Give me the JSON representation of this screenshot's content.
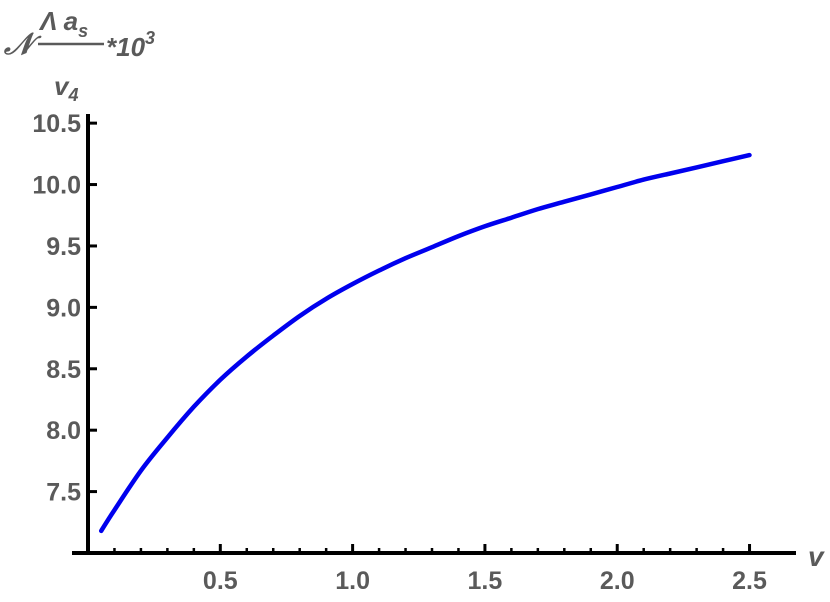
{
  "chart_data": {
    "type": "line",
    "title": "",
    "xlabel": "v",
    "ylabel": {
      "prefix": "𝒩",
      "numerator": "Λ a",
      "numerator_sub": "s",
      "denominator": "v",
      "denominator_sub": "4",
      "suffix": "*10",
      "suffix_sup": "3"
    },
    "xlim": [
      0,
      2.6
    ],
    "ylim": [
      7.0,
      10.55
    ],
    "xticks": [
      0.5,
      1.0,
      1.5,
      2.0,
      2.5
    ],
    "xtick_labels": [
      "0.5",
      "1.0",
      "1.5",
      "2.0",
      "2.5"
    ],
    "yticks": [
      7.5,
      8.0,
      8.5,
      9.0,
      9.5,
      10.0,
      10.5
    ],
    "ytick_labels": [
      "7.5",
      "8.0",
      "8.5",
      "9.0",
      "9.5",
      "10.0",
      "10.5"
    ],
    "grid": false,
    "series": [
      {
        "color": "#0000ee",
        "x": [
          0.05,
          0.1,
          0.2,
          0.3,
          0.4,
          0.5,
          0.6,
          0.7,
          0.8,
          0.9,
          1.0,
          1.1,
          1.2,
          1.3,
          1.4,
          1.5,
          1.6,
          1.7,
          1.8,
          1.9,
          2.0,
          2.1,
          2.2,
          2.3,
          2.4,
          2.5
        ],
        "y": [
          7.18,
          7.35,
          7.67,
          7.94,
          8.19,
          8.41,
          8.6,
          8.77,
          8.93,
          9.07,
          9.19,
          9.3,
          9.4,
          9.49,
          9.58,
          9.66,
          9.73,
          9.8,
          9.86,
          9.92,
          9.98,
          10.04,
          10.09,
          10.14,
          10.19,
          10.24
        ]
      }
    ]
  }
}
